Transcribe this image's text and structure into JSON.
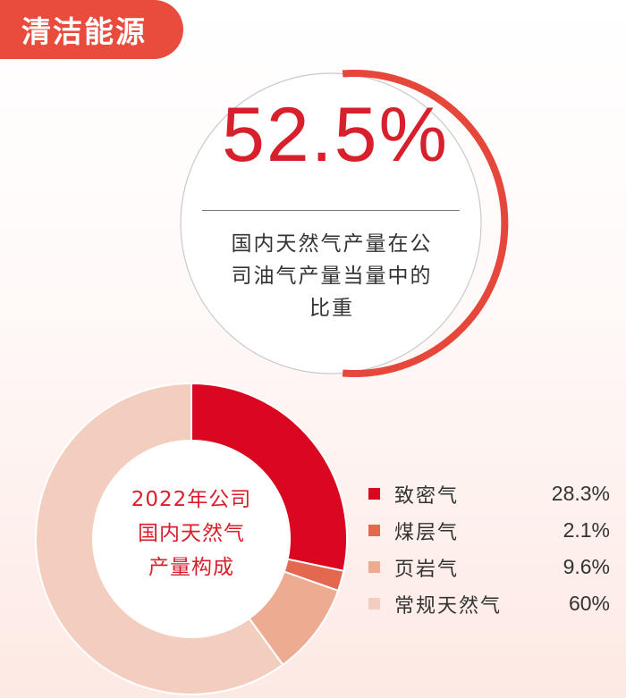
{
  "header": {
    "title": "清洁能源"
  },
  "highlight": {
    "value": 52.5,
    "value_text": "52.5%",
    "description": [
      "国内天然气产量在公",
      "司油气产量当量中的",
      "比重"
    ],
    "ring_color": "#e5483a",
    "track_color": "#c9c9c9"
  },
  "chart_data": {
    "type": "pie",
    "style": "donut",
    "center_label": [
      "2022年公司",
      "国内天然气",
      "产量构成"
    ],
    "categories": [
      "致密气",
      "煤层气",
      "页岩气",
      "常规天然气"
    ],
    "values": [
      28.3,
      2.1,
      9.6,
      60
    ],
    "value_labels": [
      "28.3%",
      "2.1%",
      "9.6%",
      "60%"
    ],
    "colors": [
      "#d9071f",
      "#e2684f",
      "#edab92",
      "#f3cdbd"
    ],
    "legend_position": "right"
  }
}
